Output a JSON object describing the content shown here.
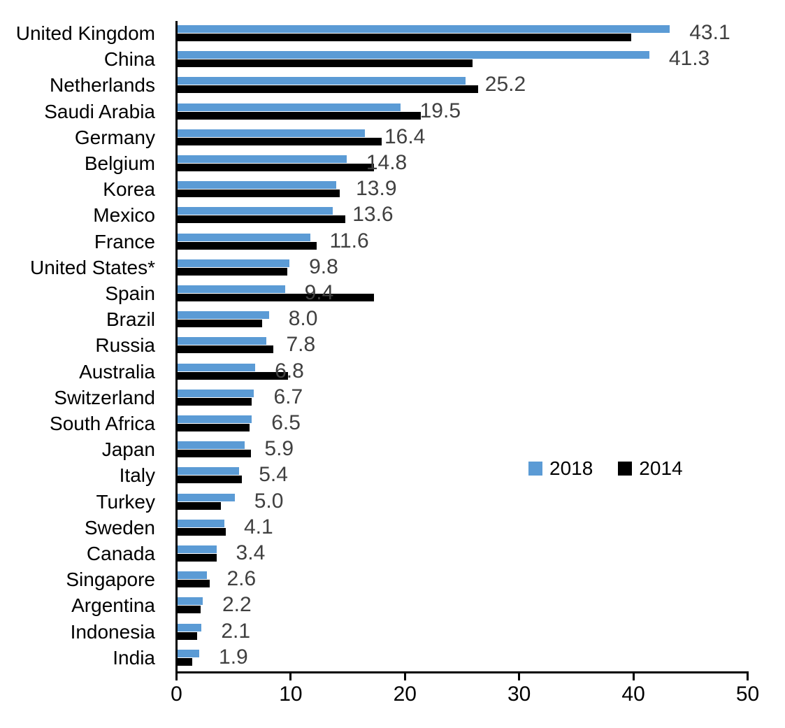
{
  "chart_data": {
    "type": "bar",
    "orientation": "horizontal",
    "title": "",
    "xlabel": "",
    "ylabel": "",
    "xlim": [
      0,
      50
    ],
    "x_ticks": [
      0,
      10,
      20,
      30,
      40,
      50
    ],
    "grid": false,
    "legend_position": "middle-right",
    "categories": [
      "United Kingdom",
      "China",
      "Netherlands",
      "Saudi Arabia",
      "Germany",
      "Belgium",
      "Korea",
      "Mexico",
      "France",
      "United States*",
      "Spain",
      "Brazil",
      "Russia",
      "Australia",
      "Switzerland",
      "South Africa",
      "Japan",
      "Italy",
      "Turkey",
      "Sweden",
      "Canada",
      "Singapore",
      "Argentina",
      "Indonesia",
      "India"
    ],
    "series": [
      {
        "name": "2018",
        "color": "#5B9BD5",
        "values": [
          43.1,
          41.3,
          25.2,
          19.5,
          16.4,
          14.8,
          13.9,
          13.6,
          11.6,
          9.8,
          9.4,
          8.0,
          7.8,
          6.8,
          6.7,
          6.5,
          5.9,
          5.4,
          5.0,
          4.1,
          3.4,
          2.6,
          2.2,
          2.1,
          1.9
        ]
      },
      {
        "name": "2014",
        "color": "#000000",
        "values": [
          39.7,
          25.8,
          26.3,
          21.3,
          17.9,
          17.2,
          14.2,
          14.7,
          12.2,
          9.6,
          17.2,
          7.4,
          8.4,
          9.7,
          6.5,
          6.3,
          6.4,
          5.6,
          3.8,
          4.2,
          3.4,
          2.8,
          2.0,
          1.7,
          1.3
        ]
      }
    ],
    "value_labels": [
      "43.1",
      "41.3",
      "25.2",
      "19.5",
      "16.4",
      "14.8",
      "13.9",
      "13.6",
      "11.6",
      "9.8",
      "9.4",
      "8.0",
      "7.8",
      "6.8",
      "6.7",
      "6.5",
      "5.9",
      "5.4",
      "5.0",
      "4.1",
      "3.4",
      "2.6",
      "2.2",
      "2.1",
      "1.9"
    ],
    "value_label_series": "2018",
    "value_label_color": "#404040"
  },
  "legend": {
    "items": [
      {
        "label": "2018",
        "color": "#5B9BD5"
      },
      {
        "label": "2014",
        "color": "#000000"
      }
    ]
  }
}
